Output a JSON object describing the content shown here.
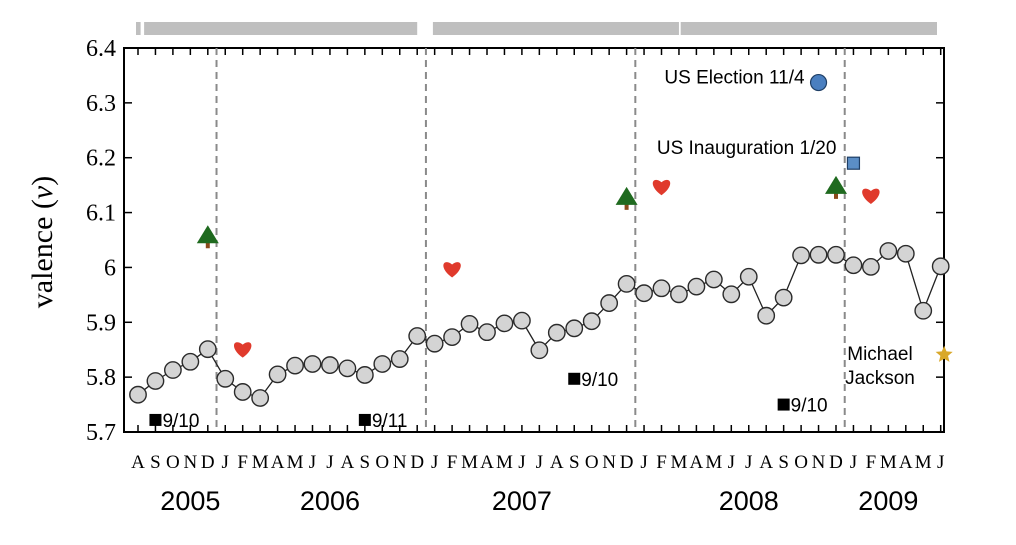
{
  "chart_data": {
    "type": "line",
    "ylabel_text": "valence (",
    "ylabel_var": "v",
    "ylabel_close": ")",
    "ylim": [
      5.7,
      6.4
    ],
    "y_ticks": [
      "5.7",
      "5.8",
      "5.9",
      "6",
      "6.1",
      "6.2",
      "6.3",
      "6.4"
    ],
    "y_tick_values": [
      5.7,
      5.8,
      5.9,
      6.0,
      6.1,
      6.2,
      6.3,
      6.4
    ],
    "month_ticks": [
      "A",
      "S",
      "O",
      "N",
      "D",
      "J",
      "F",
      "M",
      "A",
      "M",
      "J",
      "J",
      "A",
      "S",
      "O",
      "N",
      "D",
      "J",
      "F",
      "M",
      "A",
      "M",
      "J",
      "J",
      "A",
      "S",
      "O",
      "N",
      "D",
      "J",
      "F",
      "M",
      "A",
      "M",
      "J",
      "J",
      "A",
      "S",
      "O",
      "N",
      "D",
      "J",
      "F",
      "M",
      "A",
      "M",
      "J"
    ],
    "years": [
      {
        "label": "2005",
        "month": 3
      },
      {
        "label": "2006",
        "month": 11
      },
      {
        "label": "2007",
        "month": 22
      },
      {
        "label": "2008",
        "month": 35
      },
      {
        "label": "2009",
        "month": 43
      }
    ],
    "year_boundaries": [
      4.5,
      16.5,
      28.5,
      40.5
    ],
    "data_gaps": [
      {
        "from": 0.15,
        "to": 0.35
      },
      {
        "from": 16.0,
        "to": 16.9
      },
      {
        "from": 31.0,
        "to": 31.1
      }
    ],
    "series": [
      {
        "x": [
          0,
          1,
          2,
          3,
          4,
          5,
          6,
          7,
          8,
          9,
          10,
          11,
          12,
          13,
          14,
          15,
          16,
          17,
          18,
          19,
          20,
          21,
          22,
          23,
          24,
          25,
          26,
          27,
          28,
          29,
          30,
          31,
          32,
          33,
          34,
          35,
          36,
          37,
          38,
          39,
          40,
          41,
          42,
          43,
          44,
          45,
          46
        ],
        "values": [
          5.768,
          5.793,
          5.813,
          5.828,
          5.851,
          5.797,
          5.773,
          5.762,
          5.805,
          5.821,
          5.824,
          5.822,
          5.816,
          5.804,
          5.824,
          5.833,
          5.875,
          5.861,
          5.873,
          5.897,
          5.882,
          5.898,
          5.903,
          5.849,
          5.881,
          5.889,
          5.902,
          5.935,
          5.97,
          5.953,
          5.962,
          5.951,
          5.965,
          5.978,
          5.951,
          5.983,
          5.912,
          5.945,
          6.022,
          6.023,
          6.023,
          6.004,
          6.001,
          6.03,
          6.025,
          5.921,
          6.002
        ]
      }
    ],
    "events": [
      {
        "kind": "square",
        "label": "9/10",
        "x": 1,
        "y": 5.722
      },
      {
        "kind": "square",
        "label": "9/11",
        "x": 13,
        "y": 5.722
      },
      {
        "kind": "square",
        "label": "9/10",
        "x": 25,
        "y": 5.797
      },
      {
        "kind": "square",
        "label": "9/10",
        "x": 37,
        "y": 5.75
      },
      {
        "kind": "tree",
        "x": 4,
        "y": 6.055
      },
      {
        "kind": "tree",
        "x": 28,
        "y": 6.125
      },
      {
        "kind": "tree",
        "x": 40,
        "y": 6.145
      },
      {
        "kind": "heart",
        "x": 6,
        "y": 5.852
      },
      {
        "kind": "heart",
        "x": 18,
        "y": 5.998
      },
      {
        "kind": "heart",
        "x": 30,
        "y": 6.148
      },
      {
        "kind": "heart",
        "x": 42,
        "y": 6.132
      },
      {
        "kind": "circle",
        "label": "US Election 11/4",
        "x": 39,
        "y": 6.337
      },
      {
        "kind": "blue-square",
        "label": "US Inauguration 1/20",
        "x": 41,
        "y": 6.19
      },
      {
        "kind": "star",
        "label_line1": "Michael",
        "label_line2": "Jackson",
        "x": 46.2,
        "y": 5.841
      }
    ]
  },
  "colors": {
    "marker_fill": "#d4d4d4",
    "marker_stroke": "#2b2b2b",
    "line": "#222222",
    "bar": "#bfbfbf",
    "tree": "#1f6a1f",
    "trunk": "#8b4a1c",
    "heart": "#e03a2c",
    "circle": "#4a7fc0",
    "blue_square": "#5b8ec6",
    "star": "#d9a82a",
    "dashed": "#8a8a8a"
  }
}
